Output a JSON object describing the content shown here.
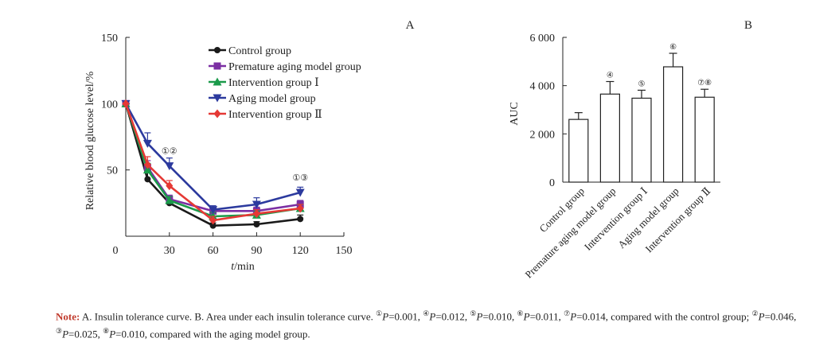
{
  "chart_data": [
    {
      "type": "line",
      "panel_label": "A",
      "xlabel": "t/min",
      "ylabel": "Relative blood glucose level/%",
      "xlim": [
        0,
        150
      ],
      "ylim": [
        0,
        150
      ],
      "x_ticks": [
        0,
        30,
        60,
        90,
        120,
        150
      ],
      "y_ticks": [
        50,
        100,
        150
      ],
      "x": [
        0,
        15,
        30,
        60,
        90,
        120
      ],
      "legend_position": "top-right",
      "series": [
        {
          "name": "Control group",
          "color": "#1a1a1a",
          "marker": "circle",
          "values": [
            100,
            43,
            25,
            8,
            9,
            13
          ],
          "errors": [
            0,
            5,
            2,
            2,
            2,
            3
          ]
        },
        {
          "name": "Premature aging model group",
          "color": "#7b2fa3",
          "marker": "square",
          "values": [
            100,
            52,
            28,
            19,
            19,
            24
          ],
          "errors": [
            0,
            5,
            3,
            3,
            3,
            3
          ]
        },
        {
          "name": "Intervention group Ⅰ",
          "color": "#1a9a4a",
          "marker": "triangle-up",
          "values": [
            100,
            50,
            27,
            15,
            16,
            21
          ],
          "errors": [
            0,
            5,
            3,
            3,
            3,
            3
          ]
        },
        {
          "name": "Aging model group",
          "color": "#2c3a9e",
          "marker": "triangle-down",
          "values": [
            100,
            70,
            53,
            20,
            24,
            33
          ],
          "errors": [
            0,
            8,
            6,
            3,
            5,
            4
          ]
        },
        {
          "name": "Intervention group Ⅱ",
          "color": "#e53935",
          "marker": "diamond",
          "values": [
            100,
            54,
            38,
            12,
            17,
            21
          ],
          "errors": [
            0,
            6,
            4,
            3,
            3,
            3
          ]
        }
      ],
      "annotations": [
        {
          "x": 30,
          "y": 62,
          "text": "①②"
        },
        {
          "x": 120,
          "y": 42,
          "text": "①③"
        }
      ]
    },
    {
      "type": "bar",
      "panel_label": "B",
      "ylabel": "AUC",
      "ylim": [
        0,
        6000
      ],
      "y_ticks": [
        0,
        2000,
        4000,
        6000
      ],
      "y_tick_labels": [
        "0",
        "2 000",
        "4 000",
        "6 000"
      ],
      "categories": [
        "Control group",
        "Premature aging model group",
        "Intervention group Ⅰ",
        "Aging model group",
        "Intervention group Ⅱ"
      ],
      "values": [
        2600,
        3650,
        3480,
        4780,
        3520
      ],
      "errors": [
        280,
        520,
        330,
        560,
        330
      ],
      "bar_labels": [
        "",
        "④",
        "⑤",
        "⑥",
        "⑦⑧"
      ]
    }
  ],
  "note": {
    "label": "Note",
    "colon": ":",
    "text_1": " A. Insulin tolerance curve. B. Area under each insulin tolerance curve. ",
    "s1": "①",
    "p1": "P",
    "v1": "=0.001, ",
    "s4": "④",
    "p4": "P",
    "v4": "=0.012, ",
    "s5": "⑤",
    "p5": "P",
    "v5": "=0.010, ",
    "s6": "⑥",
    "p6": "P",
    "v6": "=0.011, ",
    "s7": "⑦",
    "p7": "P",
    "v7": "=0.014, compared with the control group; ",
    "s2": "②",
    "p2": "P",
    "v2": "=0.046, ",
    "s3": "③",
    "p3": "P",
    "v3": "=0.025, ",
    "s8": "⑧",
    "p8": "P",
    "v8": "=0.010, compared with the aging model group."
  }
}
